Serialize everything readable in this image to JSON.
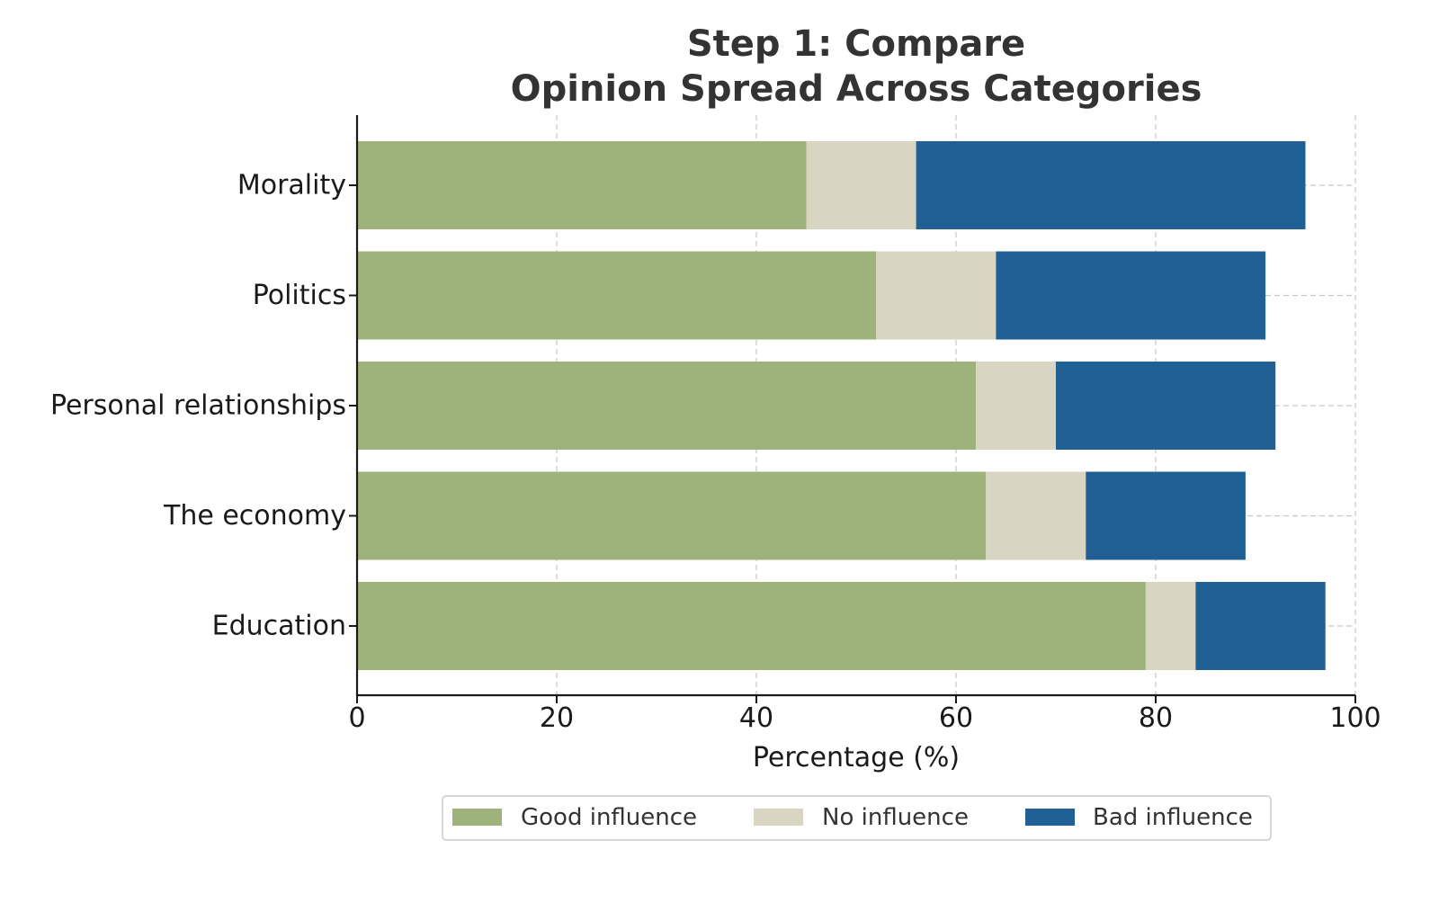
{
  "chart_data": {
    "type": "bar",
    "orientation": "horizontal",
    "stacked": true,
    "title": [
      "Step 1: Compare",
      "Opinion Spread Across Categories"
    ],
    "xlabel": "Percentage (%)",
    "ylabel": "",
    "categories": [
      "Morality",
      "Politics",
      "Personal relationships",
      "The economy",
      "Education"
    ],
    "series": [
      {
        "name": "Good influence",
        "color": "#9eb37c",
        "values": [
          45,
          52,
          62,
          63,
          79
        ]
      },
      {
        "name": "No influence",
        "color": "#d8d6c2",
        "values": [
          11,
          12,
          8,
          10,
          5
        ]
      },
      {
        "name": "Bad influence",
        "color": "#216094",
        "values": [
          39,
          27,
          22,
          16,
          13
        ]
      }
    ],
    "xlim": [
      0,
      100
    ],
    "xticks": [
      0,
      20,
      40,
      60,
      80,
      100
    ],
    "grid": true,
    "legend_position": "bottom-center"
  }
}
